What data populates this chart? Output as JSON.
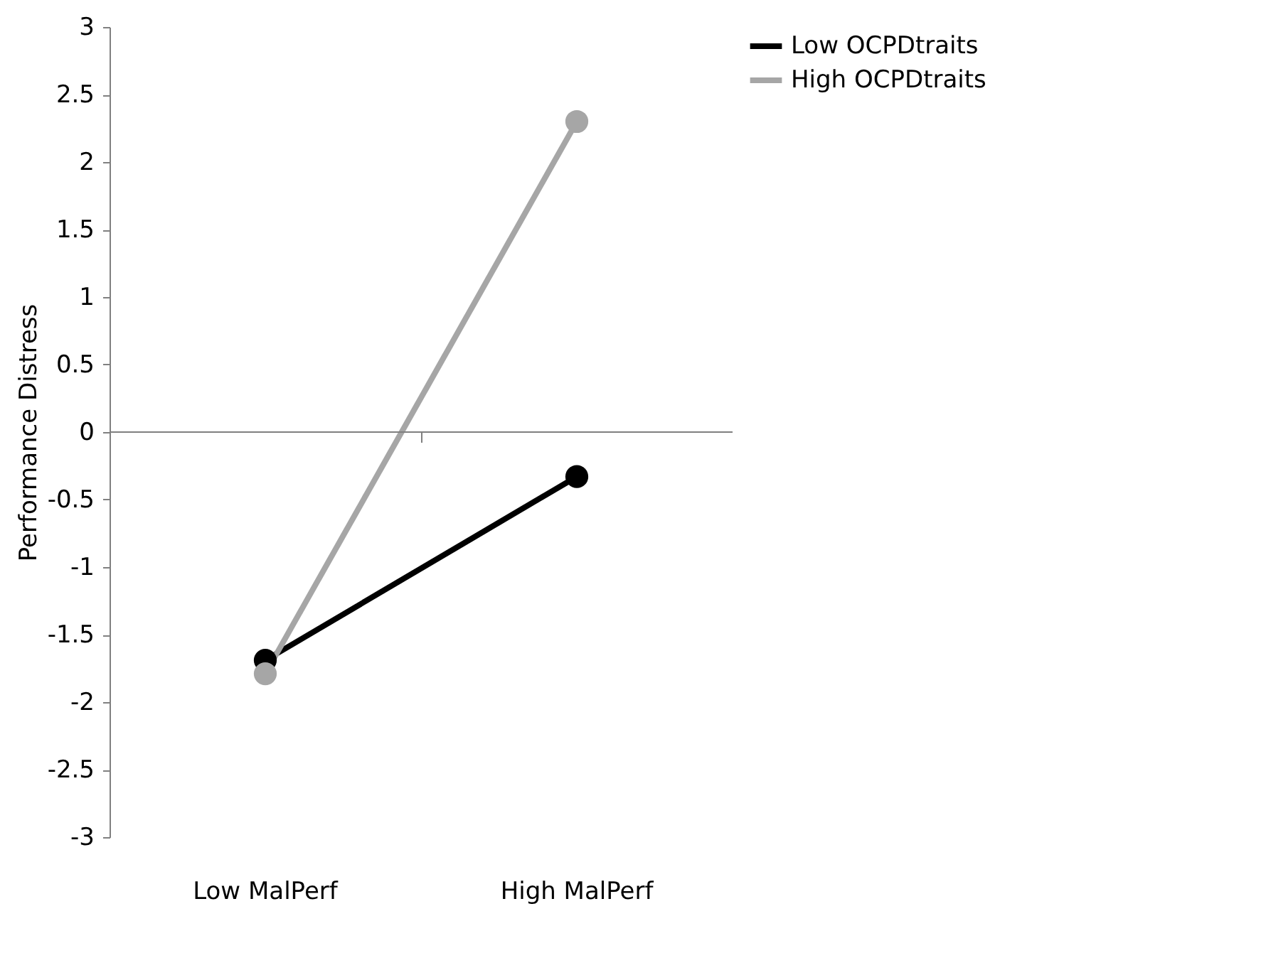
{
  "chart_data": {
    "type": "line",
    "ylabel": "Performance Distress",
    "categories": [
      "Low MalPerf",
      "High MalPerf"
    ],
    "series": [
      {
        "name": "Low OCPDtraits",
        "color": "#000000",
        "values": [
          -1.69,
          -0.33
        ]
      },
      {
        "name": "High OCPDtraits",
        "color": "#a6a6a6",
        "values": [
          -1.79,
          2.3
        ]
      }
    ],
    "ylim": [
      -3,
      3
    ],
    "yticks": [
      -3,
      -2.5,
      -2,
      -1.5,
      -1,
      -0.5,
      0,
      0.5,
      1,
      1.5,
      2,
      2.5,
      3
    ],
    "ref_lines": [
      {
        "axis": "y",
        "value": 0,
        "color": "#808080"
      }
    ],
    "grid": false,
    "legend": "right",
    "marker": "circle",
    "line_style": "solid"
  }
}
